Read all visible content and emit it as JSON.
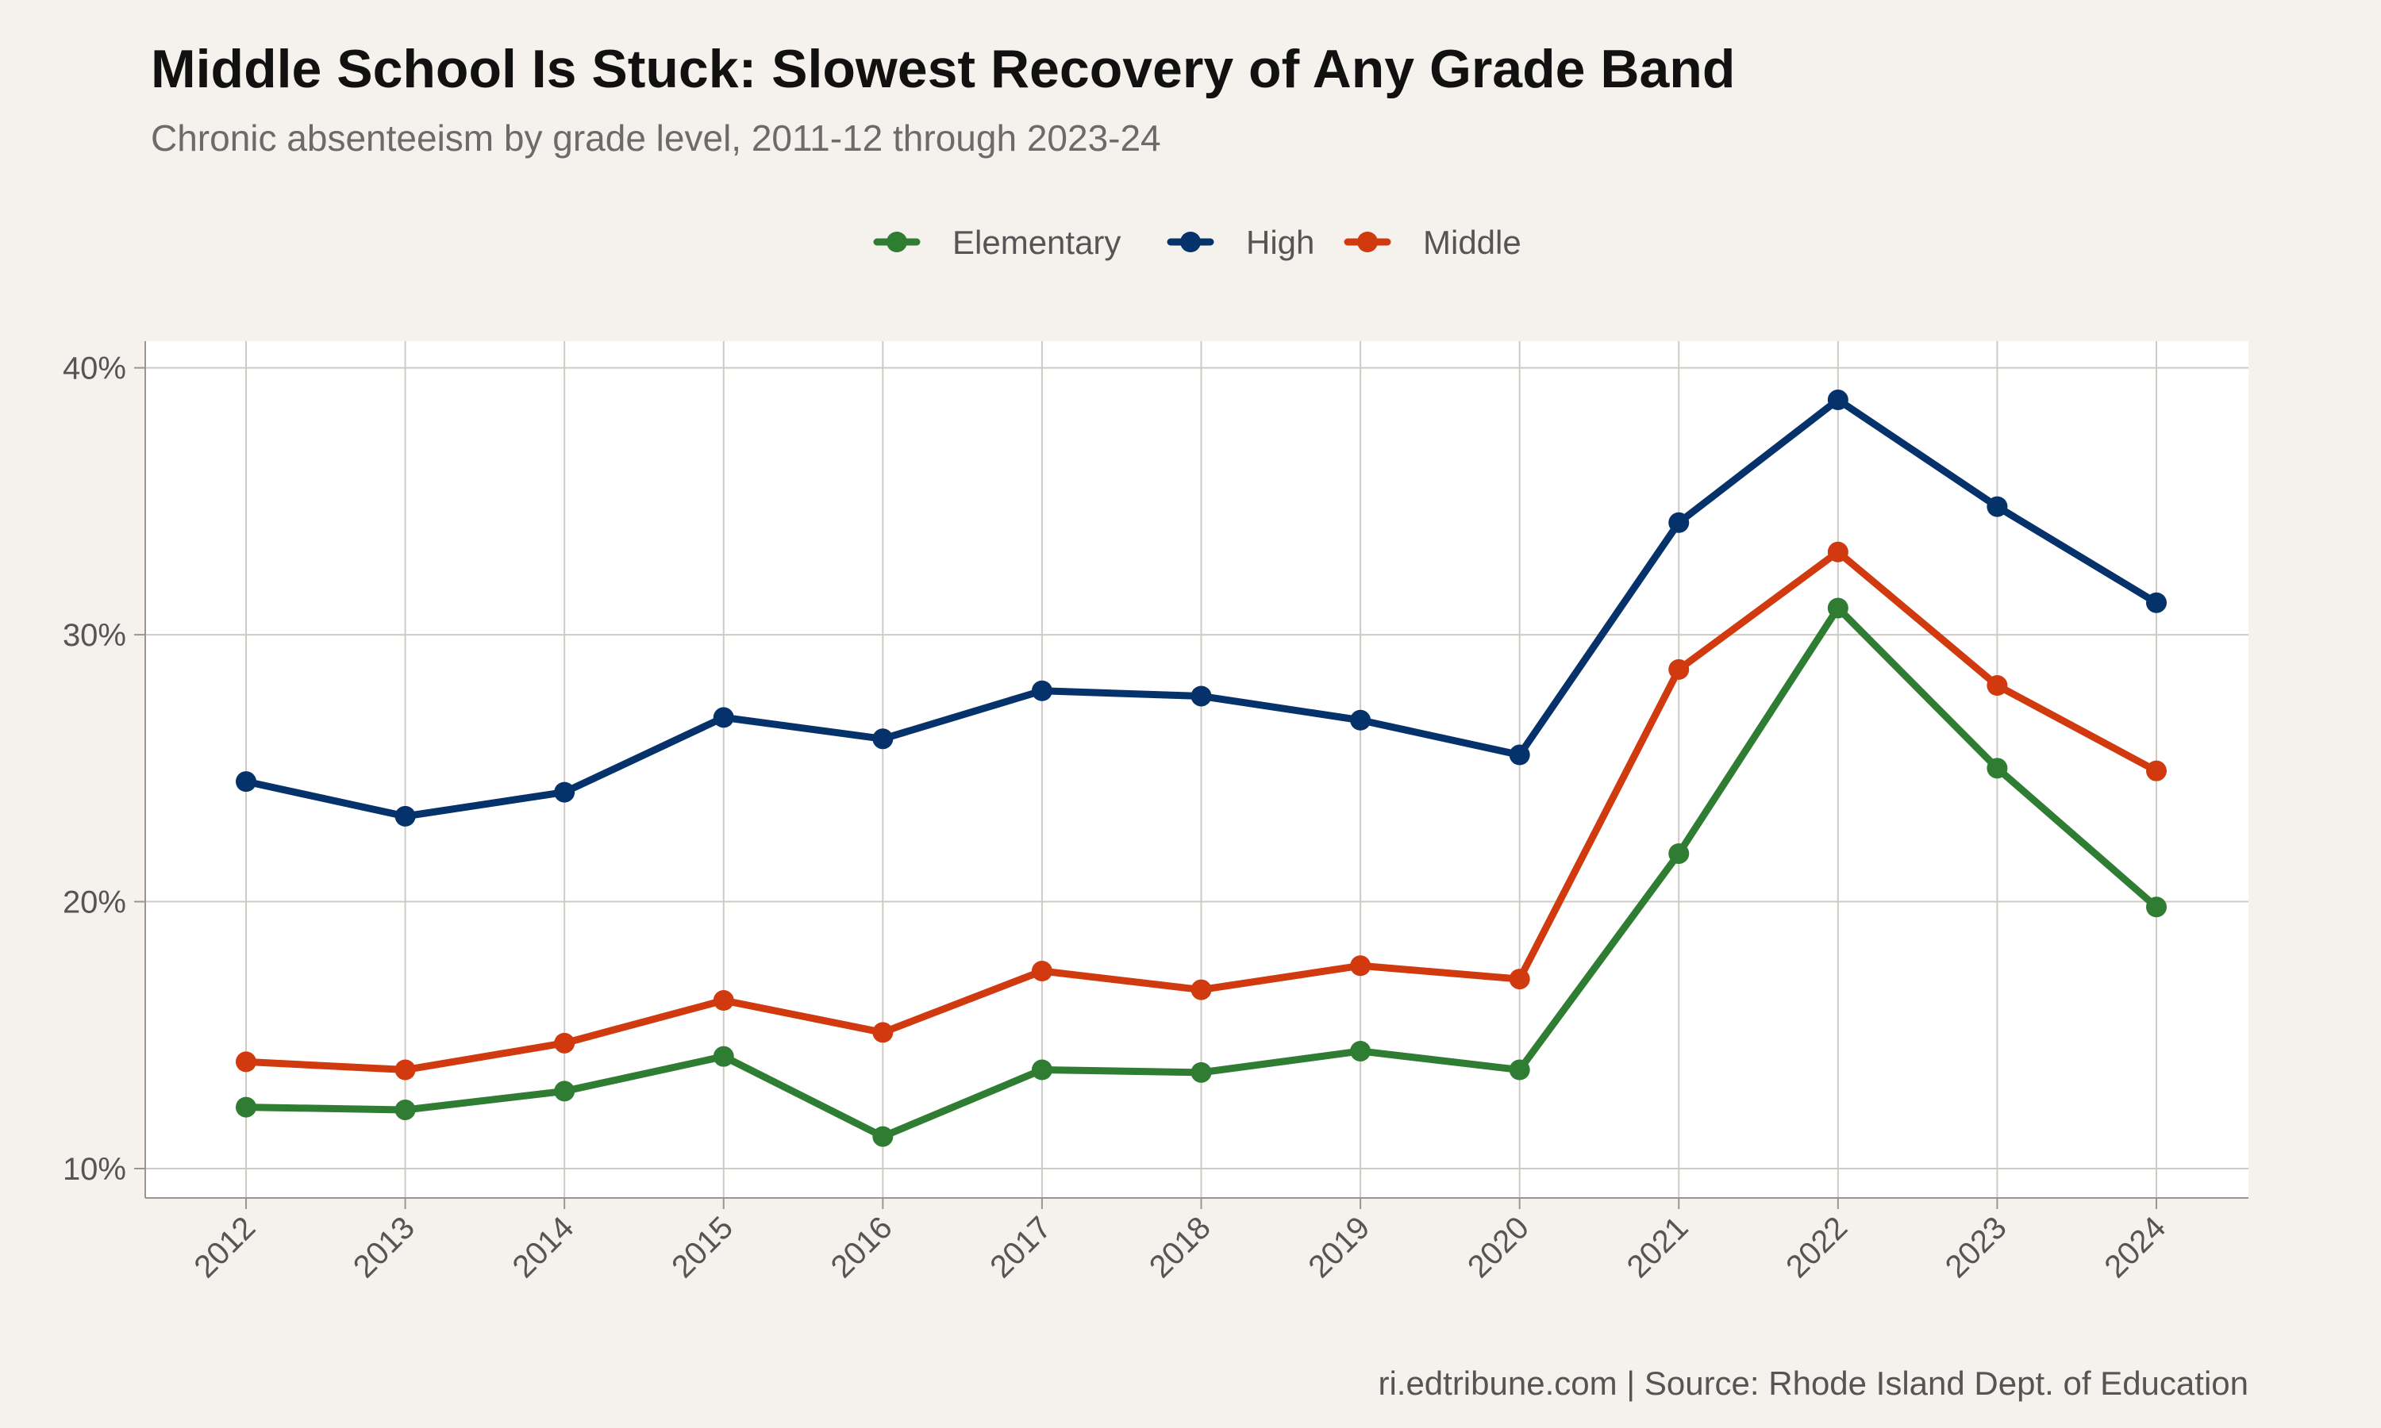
{
  "chart_data": {
    "type": "line",
    "title": "Middle School Is Stuck: Slowest Recovery of Any Grade Band",
    "subtitle": "Chronic absenteeism by grade level, 2011-12 through 2023-24",
    "caption": "ri.edtribune.com | Source: Rhode Island Dept. of Education",
    "x": [
      2012,
      2013,
      2014,
      2015,
      2016,
      2017,
      2018,
      2019,
      2020,
      2021,
      2022,
      2023,
      2024
    ],
    "x_tick_labels": [
      "2012",
      "2013",
      "2014",
      "2015",
      "2016",
      "2017",
      "2018",
      "2019",
      "2020",
      "2021",
      "2022",
      "2023",
      "2024"
    ],
    "ylim": [
      10,
      40
    ],
    "y_ticks": [
      10,
      20,
      30,
      40
    ],
    "y_tick_labels": [
      "10%",
      "20%",
      "30%",
      "40%"
    ],
    "xlabel": "",
    "ylabel": "",
    "grid": true,
    "legend_position": "top",
    "series": [
      {
        "name": "Elementary",
        "color": "#2e7d32",
        "values": [
          12.3,
          12.2,
          12.9,
          14.2,
          11.2,
          13.7,
          13.6,
          14.4,
          13.7,
          21.8,
          31.0,
          25.0,
          19.8
        ]
      },
      {
        "name": "High",
        "color": "#06326b",
        "values": [
          24.5,
          23.2,
          24.1,
          26.9,
          26.1,
          27.9,
          27.7,
          26.8,
          25.5,
          34.2,
          38.8,
          34.8,
          31.2
        ]
      },
      {
        "name": "Middle",
        "color": "#d1390f",
        "values": [
          14.0,
          13.7,
          14.7,
          16.3,
          15.1,
          17.4,
          16.7,
          17.6,
          17.1,
          28.7,
          33.1,
          28.1,
          24.9
        ]
      }
    ]
  }
}
